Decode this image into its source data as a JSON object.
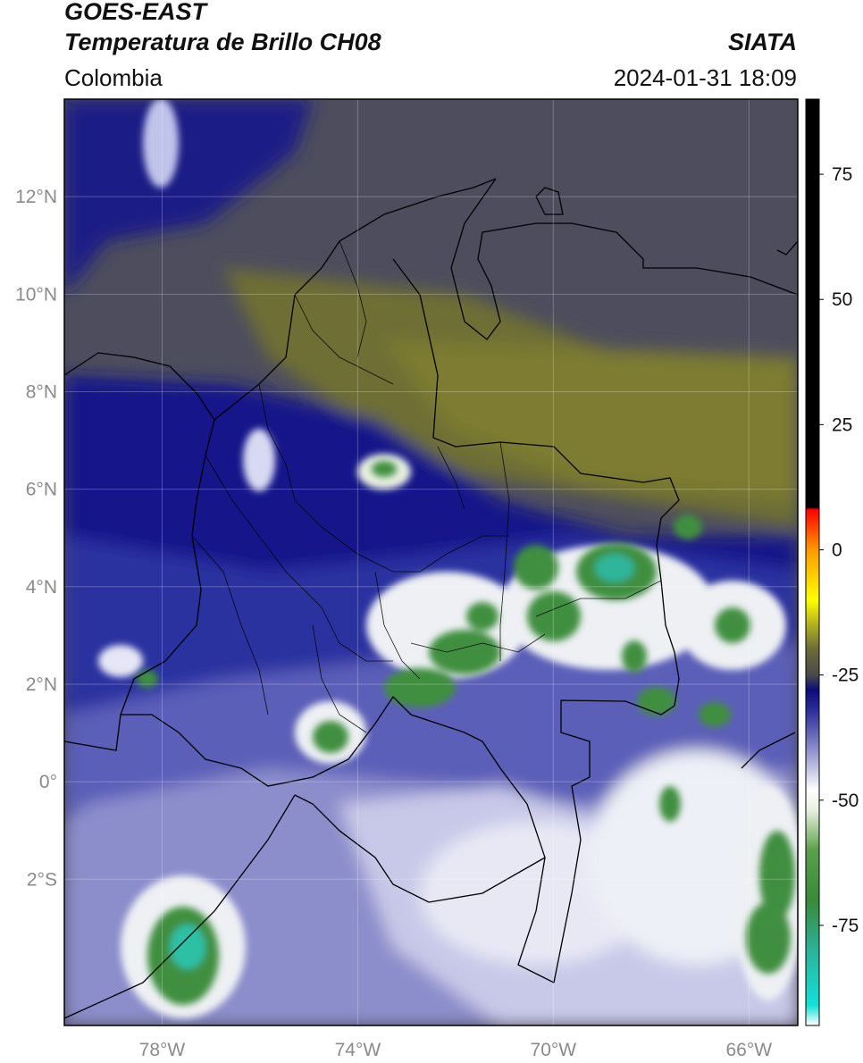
{
  "header": {
    "satellite": "GOES-EAST",
    "product": "Temperatura de Brillo CH08",
    "organization": "SIATA",
    "region": "Colombia",
    "datetime": "2024-01-31 18:09"
  },
  "map": {
    "lon_range": [
      -80,
      -65
    ],
    "lat_range": [
      -5,
      14
    ],
    "lat_ticks": [
      {
        "value": 12,
        "label": "12°N"
      },
      {
        "value": 10,
        "label": "10°N"
      },
      {
        "value": 8,
        "label": "8°N"
      },
      {
        "value": 6,
        "label": "6°N"
      },
      {
        "value": 4,
        "label": "4°N"
      },
      {
        "value": 2,
        "label": "2°N"
      },
      {
        "value": 0,
        "label": "0°"
      },
      {
        "value": -2,
        "label": "2°S"
      }
    ],
    "lon_ticks": [
      {
        "value": -78,
        "label": "78°W"
      },
      {
        "value": -74,
        "label": "74°W"
      },
      {
        "value": -70,
        "label": "70°W"
      },
      {
        "value": -66,
        "label": "66°W"
      }
    ],
    "gridlines": true
  },
  "colorbar": {
    "range": [
      -95,
      90
    ],
    "ticks": [
      {
        "value": 75,
        "label": "75"
      },
      {
        "value": 50,
        "label": "50"
      },
      {
        "value": 25,
        "label": "25"
      },
      {
        "value": 0,
        "label": "0"
      },
      {
        "value": -25,
        "label": "-25"
      },
      {
        "value": -50,
        "label": "-50"
      },
      {
        "value": -75,
        "label": "-75"
      }
    ],
    "stops": [
      {
        "value": -95,
        "color": "#ffffff"
      },
      {
        "value": -91,
        "color": "#14e0d8"
      },
      {
        "value": -80,
        "color": "#2bb39a"
      },
      {
        "value": -70,
        "color": "#3a8a3a"
      },
      {
        "value": -60,
        "color": "#5aa04a"
      },
      {
        "value": -52,
        "color": "#e8f0e0"
      },
      {
        "value": -48,
        "color": "#ffffff"
      },
      {
        "value": -40,
        "color": "#8e90cc"
      },
      {
        "value": -32,
        "color": "#2a2d9a"
      },
      {
        "value": -28,
        "color": "#0a0c7a"
      },
      {
        "value": -25,
        "color": "#4a4a4a"
      },
      {
        "value": -20,
        "color": "#6a6a3a"
      },
      {
        "value": -15,
        "color": "#b0b020"
      },
      {
        "value": -10,
        "color": "#ffff00"
      },
      {
        "value": 0,
        "color": "#ff9900"
      },
      {
        "value": 8,
        "color": "#ff0000"
      },
      {
        "value": 8.5,
        "color": "#000000"
      },
      {
        "value": 90,
        "color": "#000000"
      }
    ]
  }
}
